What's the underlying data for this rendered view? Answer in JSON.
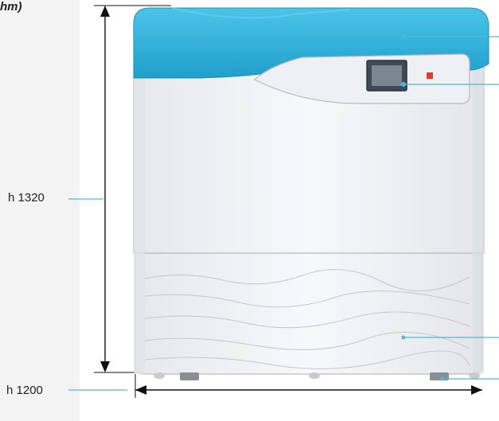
{
  "title_fragment": "hm)",
  "dimensions": {
    "height_label": "h 1320",
    "base_label": "h 1200"
  },
  "colors": {
    "lid": "#2fb4de",
    "lid_dark": "#1e9ac4",
    "body": "#f2f3f5",
    "leader_line": "#4fb8e0",
    "dimension_line": "#111111",
    "left_panel": "#f3f3f3",
    "indicator": "#e23b2a"
  }
}
